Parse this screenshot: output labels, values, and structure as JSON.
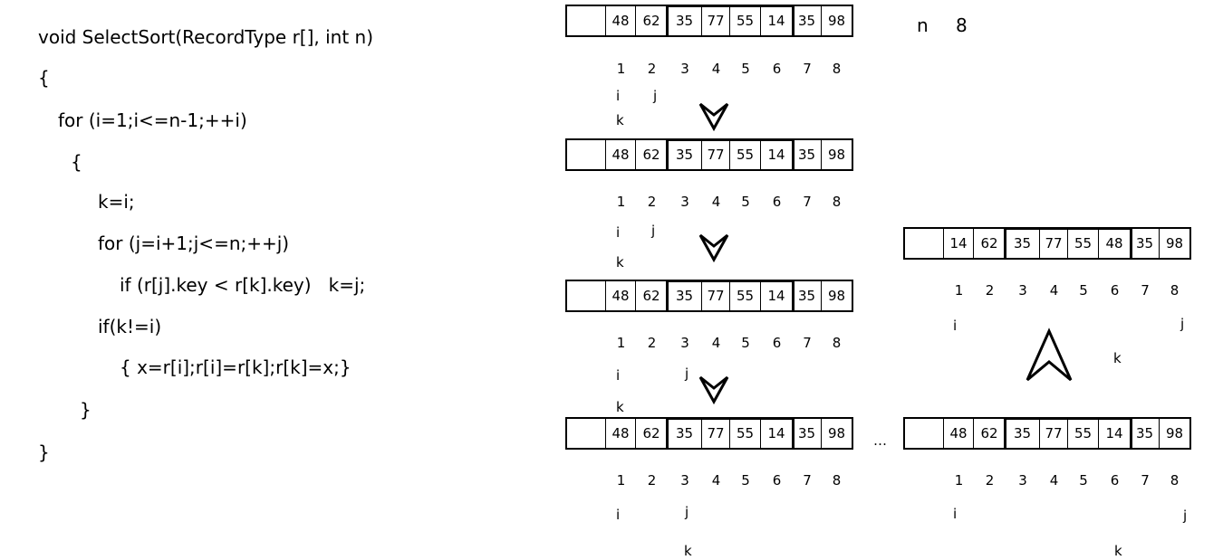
{
  "code": [
    "void SelectSort(RecordType r[], int n)",
    "{",
    "for (i=1;i<=n-1;++i)",
    "{",
    "k=i;",
    "for (j=i+1;j<=n;++j)",
    "if (r[j].key < r[k].key)   k=j;",
    "if(k!=i)",
    "{ x=r[i];r[i]=r[k];r[k]=x;}",
    "}",
    "}"
  ],
  "n_label": {
    "name": "n",
    "value": "8"
  },
  "indices": [
    "1",
    "2",
    "3",
    "4",
    "5",
    "6",
    "7",
    "8"
  ],
  "ellipsis": "…",
  "arrays": [
    {
      "values": [
        "48",
        "62",
        "35",
        "77",
        "55",
        "14",
        "35",
        "98"
      ],
      "pointers": {
        "i": "i",
        "j": "j",
        "k": "k"
      }
    },
    {
      "values": [
        "48",
        "62",
        "35",
        "77",
        "55",
        "14",
        "35",
        "98"
      ],
      "pointers": {
        "i": "i",
        "j": "j",
        "k": "k"
      }
    },
    {
      "values": [
        "48",
        "62",
        "35",
        "77",
        "55",
        "14",
        "35",
        "98"
      ],
      "pointers": {
        "i": "i",
        "j": "j",
        "k": "k"
      }
    },
    {
      "values": [
        "48",
        "62",
        "35",
        "77",
        "55",
        "14",
        "35",
        "98"
      ],
      "pointers": {
        "i": "i",
        "j": "j",
        "k": "k"
      }
    },
    {
      "values": [
        "14",
        "62",
        "35",
        "77",
        "55",
        "48",
        "35",
        "98"
      ],
      "pointers": {
        "i": "i",
        "j": "j",
        "k": "k"
      }
    },
    {
      "values": [
        "48",
        "62",
        "35",
        "77",
        "55",
        "14",
        "35",
        "98"
      ],
      "pointers": {
        "i": "i",
        "j": "j",
        "k": "k"
      }
    }
  ]
}
